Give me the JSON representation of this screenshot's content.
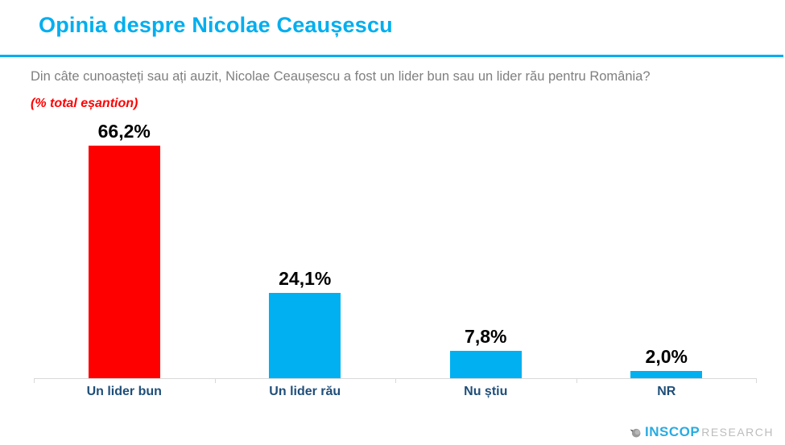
{
  "header": {
    "title": "Opinia despre Nicolae Ceaușescu"
  },
  "question": "Din câte cunoașteți sau ați auzit, Nicolae Ceaușescu a fost un lider bun sau un lider rău pentru România?",
  "subtitle": "(% total eșantion)",
  "chart_data": {
    "type": "bar",
    "title": "Opinia despre Nicolae Ceaușescu",
    "categories": [
      "Un lider bun",
      "Un lider rău",
      "Nu știu",
      "NR"
    ],
    "values": [
      66.2,
      24.1,
      7.8,
      2.0
    ],
    "value_labels": [
      "66,2%",
      "24,1%",
      "7,8%",
      "2,0%"
    ],
    "bar_colors": [
      "#FF0000",
      "#00B0F0",
      "#00B0F0",
      "#00B0F0"
    ],
    "xlabel": "",
    "ylabel": "% total eșantion",
    "ylim": [
      0,
      70
    ],
    "grid": false,
    "legend": false,
    "data_labels": true
  },
  "footer": {
    "logo_icon": "inscop-drop-icon",
    "logo_primary": "INSCOP",
    "logo_secondary": "RESEARCH"
  },
  "colors": {
    "accent_blue": "#00AEEF",
    "bar_blue": "#00B0F0",
    "bar_red": "#FF0000",
    "category_label_navy": "#1F4E79",
    "question_gray": "#7F7F7F",
    "subtitle_red": "#FF0000",
    "axis_gray": "#D9D9D9",
    "value_label_black": "#000000"
  }
}
